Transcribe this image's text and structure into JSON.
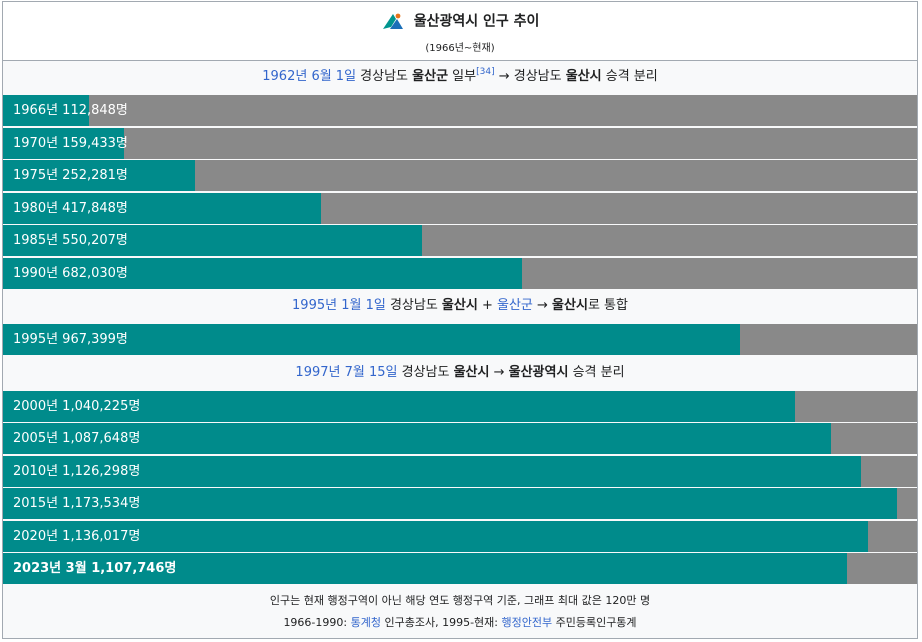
{
  "header": {
    "title": "울산광역시 인구 추이",
    "subtitle": "(1966년~현재)"
  },
  "events": [
    {
      "before": 0,
      "date_link": "1962년 6월 1일",
      "t1": " 경상남도 ",
      "b1": "울산군",
      "t2": " 일부",
      "ref": "[34]",
      "t3": " → 경상남도 ",
      "b2": "울산시",
      "t4": " 승격 분리"
    },
    {
      "before": 6,
      "date_link": "1995년 1월 1일",
      "t1": " 경상남도 ",
      "b1": "울산시",
      "t2": " + ",
      "link2": "울산군",
      "t3": " → ",
      "b2": "울산시",
      "t4": "로 통합"
    },
    {
      "before": 7,
      "date_link": "1997년 7월 15일",
      "t1": " 경상남도 ",
      "b1": "울산시",
      "t2": " → ",
      "b2": "울산광역시",
      "t4": " 승격 분리"
    }
  ],
  "chart_data": {
    "type": "bar",
    "orientation": "horizontal",
    "max_value": 1200000,
    "categories": [
      "1966",
      "1970",
      "1975",
      "1980",
      "1985",
      "1990",
      "1995",
      "2000",
      "2005",
      "2010",
      "2015",
      "2020",
      "2023"
    ],
    "values": [
      112848,
      159433,
      252281,
      417848,
      550207,
      682030,
      967399,
      1040225,
      1087648,
      1126298,
      1173534,
      1136017,
      1107746
    ],
    "labels": [
      "1966년 112,848명",
      "1970년 159,433명",
      "1975년 252,281명",
      "1980년 417,848명",
      "1985년 550,207명",
      "1990년 682,030명",
      "1995년 967,399명",
      "2000년 1,040,225명",
      "2005년 1,087,648명",
      "2010년 1,126,298명",
      "2015년 1,173,534명",
      "2020년 1,136,017명",
      "2023년 3월 1,107,746명"
    ],
    "bold_index": 12,
    "bar_color": "#008b8b",
    "track_color": "#898989"
  },
  "footer": {
    "note": "인구는 현재 행정구역이 아닌 해당 연도 행정구역 기준, 그래프 최대 값은 120만 명",
    "src_prefix": "1966-1990: ",
    "src_link1": "통계청",
    "src_mid": " 인구총조사, 1995-현재: ",
    "src_link2": "행정안전부",
    "src_suffix": " 주민등록인구통계"
  }
}
